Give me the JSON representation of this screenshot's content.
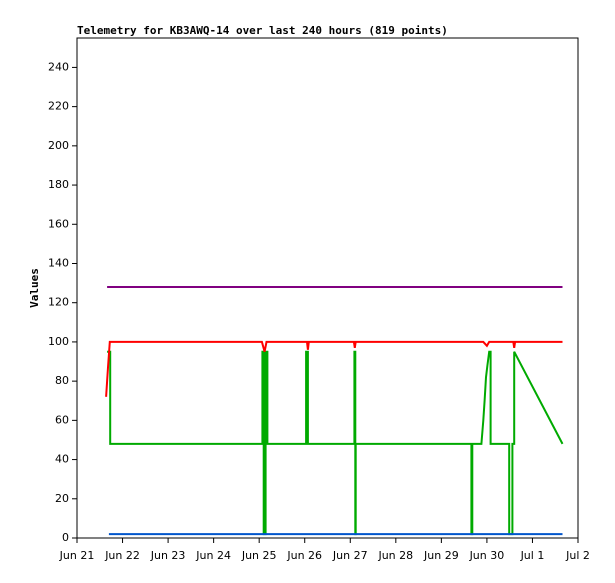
{
  "chart_data": {
    "type": "line",
    "title": "Telemetry for KB3AWQ-14 over last 240 hours (819 points)",
    "y_label": "Values",
    "xlim": [
      21,
      32
    ],
    "xticks": [
      {
        "value": 21,
        "label": "Jun 21"
      },
      {
        "value": 22,
        "label": "Jun 22"
      },
      {
        "value": 23,
        "label": "Jun 23"
      },
      {
        "value": 24,
        "label": "Jun 24"
      },
      {
        "value": 25,
        "label": "Jun 25"
      },
      {
        "value": 26,
        "label": "Jun 26"
      },
      {
        "value": 27,
        "label": "Jun 27"
      },
      {
        "value": 28,
        "label": "Jun 28"
      },
      {
        "value": 29,
        "label": "Jun 29"
      },
      {
        "value": 30,
        "label": "Jun 30"
      },
      {
        "value": 31,
        "label": "Jul 1"
      },
      {
        "value": 32,
        "label": "Jul 2"
      }
    ],
    "ylim": [
      0,
      255
    ],
    "yticks": [
      0,
      20,
      40,
      60,
      80,
      100,
      120,
      140,
      160,
      180,
      200,
      220,
      240
    ],
    "series": [
      {
        "color": "#800080",
        "x": [
          21.66,
          31.66
        ],
        "values": [
          128,
          128
        ]
      },
      {
        "color": "#00aa00",
        "x": [
          21.66,
          21.73,
          21.73,
          25.07,
          25.07,
          25.1,
          25.1,
          25.14,
          25.14,
          25.18,
          25.18,
          26.03,
          26.03,
          26.07,
          26.07,
          27.09,
          27.09,
          27.11,
          27.11,
          27.12,
          27.12,
          29.66,
          29.66,
          29.68,
          29.68,
          29.88,
          29.92,
          29.95,
          29.98,
          30.01,
          30.05,
          30.08,
          30.08,
          30.49,
          30.49,
          30.56,
          30.56,
          30.6,
          30.6,
          31.66
        ],
        "values": [
          95,
          95,
          48,
          48,
          95,
          95,
          2,
          2,
          95,
          95,
          48,
          48,
          95,
          95,
          48,
          48,
          95,
          95,
          2,
          2,
          48,
          48,
          2,
          2,
          48,
          48,
          60,
          70,
          82,
          88,
          95,
          95,
          48,
          48,
          2,
          2,
          48,
          48,
          95,
          48
        ]
      },
      {
        "color": "#ff0000",
        "x": [
          21.64,
          21.68,
          21.72,
          25.06,
          25.12,
          25.16,
          26.05,
          26.07,
          26.09,
          27.08,
          27.1,
          27.12,
          29.92,
          30.0,
          30.05,
          30.58,
          30.6,
          30.62,
          31.66
        ],
        "values": [
          72,
          87,
          100,
          100,
          95,
          100,
          100,
          96,
          100,
          100,
          97,
          100,
          100,
          98,
          100,
          100,
          97,
          100,
          100
        ]
      },
      {
        "color": "#0055cc",
        "x": [
          21.7,
          31.66
        ],
        "values": [
          2,
          2
        ]
      }
    ]
  }
}
